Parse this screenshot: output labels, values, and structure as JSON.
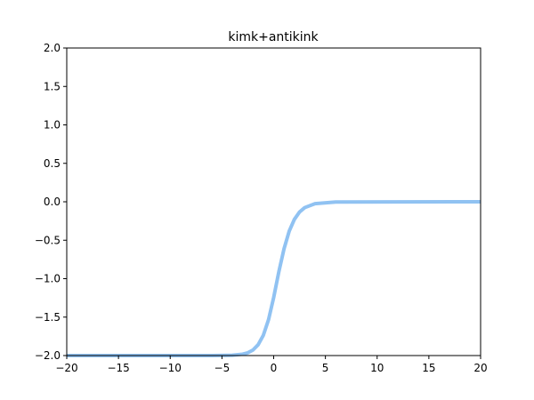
{
  "chart_data": {
    "type": "line",
    "title": "kimk+antikink",
    "xlabel": "",
    "ylabel": "",
    "xlim": [
      -20,
      20
    ],
    "ylim": [
      -2.0,
      2.0
    ],
    "grid": false,
    "x_ticks": [
      -20,
      -15,
      -10,
      -5,
      0,
      5,
      10,
      15,
      20
    ],
    "x_tick_labels": [
      "−20",
      "−15",
      "−10",
      "−5",
      "0",
      "5",
      "10",
      "15",
      "20"
    ],
    "y_ticks": [
      -2.0,
      -1.5,
      -1.0,
      -0.5,
      0.0,
      0.5,
      1.0,
      1.5,
      2.0
    ],
    "y_tick_labels": [
      "−2.0",
      "−1.5",
      "−1.0",
      "−0.5",
      "0.0",
      "0.5",
      "1.0",
      "1.5",
      "2.0"
    ],
    "series": [
      {
        "color": "#90c2f2",
        "x": [
          -20,
          -6,
          -4,
          -3,
          -2.5,
          -2,
          -1.5,
          -1,
          -0.5,
          0,
          0.5,
          1,
          1.5,
          2,
          2.5,
          3,
          4,
          6,
          20
        ],
        "y": [
          -2.0,
          -2.0,
          -1.996,
          -1.982,
          -1.964,
          -1.928,
          -1.859,
          -1.736,
          -1.535,
          -1.245,
          -0.91,
          -0.612,
          -0.382,
          -0.229,
          -0.133,
          -0.076,
          -0.024,
          -0.003,
          0.0
        ]
      }
    ]
  }
}
